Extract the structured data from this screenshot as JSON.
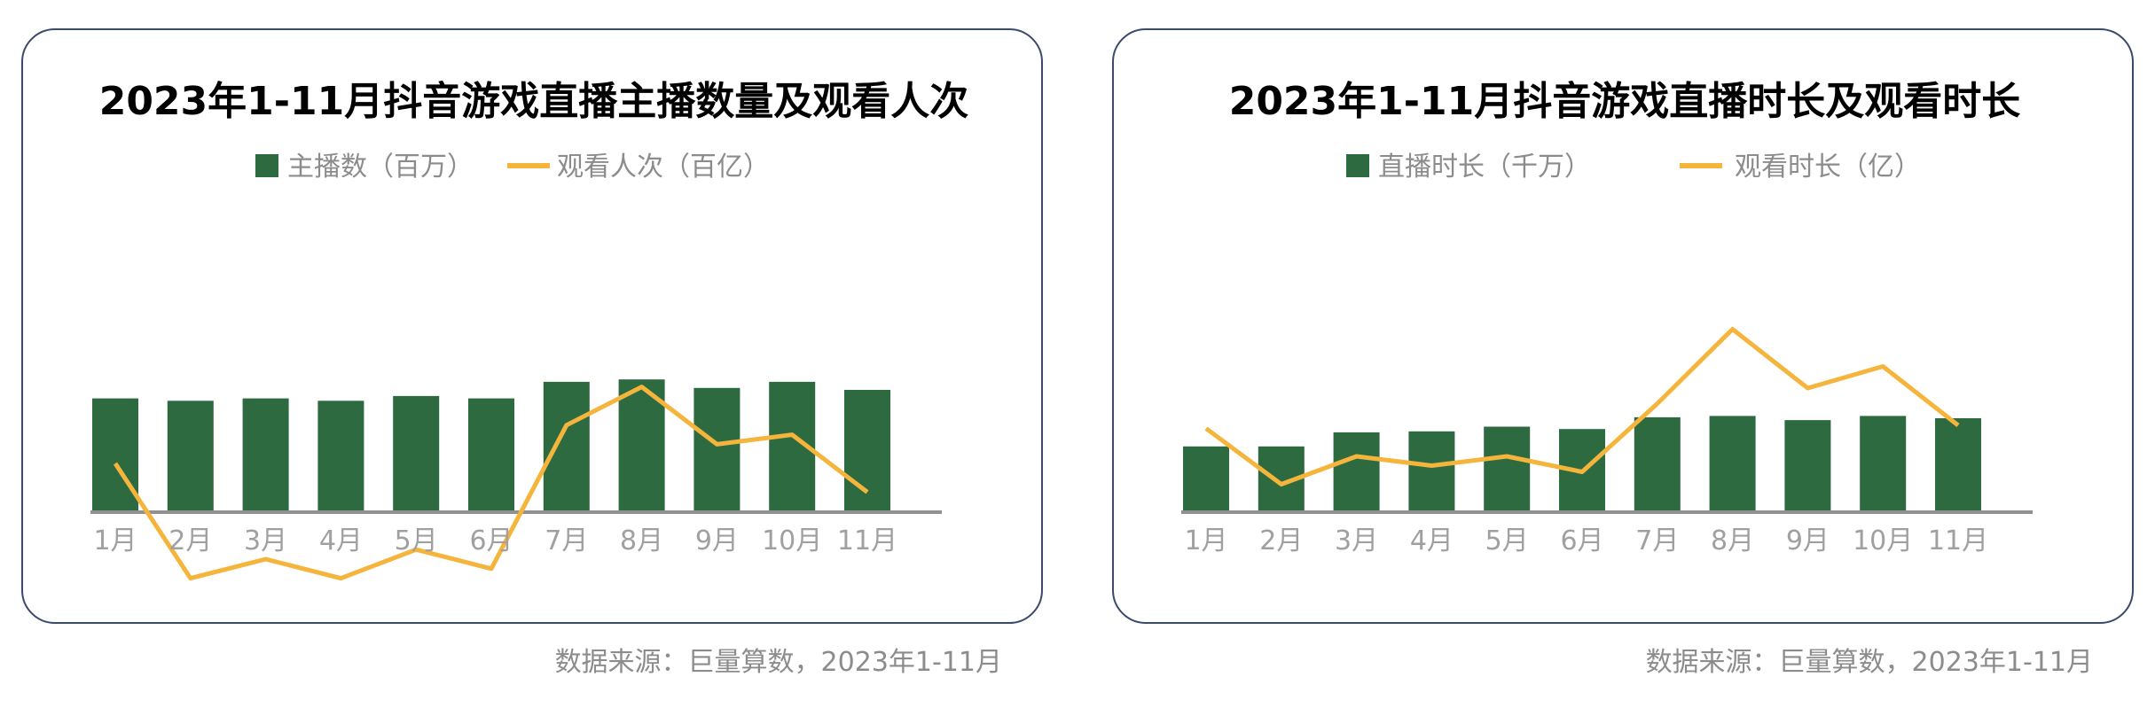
{
  "colors": {
    "bar": "#2e6a40",
    "line": "#f5b43c",
    "axis": "#909090"
  },
  "chart_data": [
    {
      "type": "bar+line",
      "title": "2023年1-11月抖音游戏直播主播数量及观看人次",
      "categories": [
        "1月",
        "2月",
        "3月",
        "4月",
        "5月",
        "6月",
        "7月",
        "8月",
        "9月",
        "10月",
        "11月"
      ],
      "series": [
        {
          "name": "主播数（百万）",
          "kind": "bar",
          "values": [
            2.4,
            2.35,
            2.4,
            2.35,
            2.45,
            2.4,
            2.75,
            2.8,
            2.62,
            2.75,
            2.58
          ]
        },
        {
          "name": "观看人次（百亿）",
          "kind": "line",
          "values": [
            5.5,
            4.3,
            4.5,
            4.3,
            4.6,
            4.4,
            5.9,
            6.3,
            5.7,
            5.8,
            5.2
          ]
        }
      ],
      "source": "数据来源：巨量算数，2023年1-11月",
      "legend": "top"
    },
    {
      "type": "bar+line",
      "title": "2023年1-11月抖音游戏直播时长及观看时长",
      "categories": [
        "1月",
        "2月",
        "3月",
        "4月",
        "5月",
        "6月",
        "7月",
        "8月",
        "9月",
        "10月",
        "11月"
      ],
      "series": [
        {
          "name": "直播时长（千万）",
          "kind": "bar",
          "values": [
            1.4,
            1.4,
            1.7,
            1.72,
            1.82,
            1.77,
            2.02,
            2.05,
            1.96,
            2.05,
            2.0
          ]
        },
        {
          "name": "观看时长（亿）",
          "kind": "line",
          "values": [
            5.2,
            4.3,
            4.75,
            4.6,
            4.75,
            4.5,
            5.6,
            6.8,
            5.85,
            6.2,
            5.25
          ]
        }
      ],
      "source": "数据来源：巨量算数，2023年1-11月",
      "legend": "top"
    }
  ]
}
